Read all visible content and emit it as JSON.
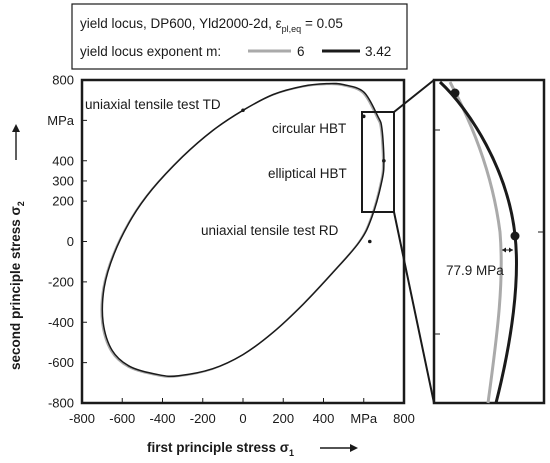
{
  "legend": {
    "line1_prefix": "yield locus, DP600, Yld2000-2d, ε",
    "line1_sub": "pl,eq",
    "line1_suffix": " = 0.05",
    "line2_prefix": "yield locus exponent m:",
    "series_labels": [
      "6",
      "3.42"
    ],
    "series_colors": [
      "#aaaaaa",
      "#1a1a1a"
    ]
  },
  "axes": {
    "x_label_main": "first principle stress σ",
    "x_label_sub": "1",
    "y_label_main": "second principle stress σ",
    "y_label_sub": "2",
    "x_unit": "MPa",
    "y_unit": "MPa"
  },
  "annotations": {
    "uniaxial_td": "uniaxial tensile test TD",
    "circular_hbt": "circular HBT",
    "elliptical_hbt": "elliptical HBT",
    "uniaxial_rd": "uniaxial tensile test RD",
    "gap_label": "77.9 MPa"
  },
  "chart_data": {
    "type": "line",
    "xlabel": "first principle stress σ1",
    "ylabel": "second principle stress σ2",
    "xlim": [
      -800,
      800
    ],
    "ylim": [
      -800,
      800
    ],
    "x_ticks": [
      -800,
      -600,
      -400,
      -200,
      0,
      200,
      400,
      600,
      800
    ],
    "x_tick_labels": [
      "-800",
      "-600",
      "-400",
      "-200",
      "0",
      "200",
      "400",
      "MPa",
      "800"
    ],
    "y_ticks": [
      -800,
      -600,
      -400,
      -200,
      0,
      200,
      300,
      400,
      600,
      800
    ],
    "y_tick_labels": [
      "-800",
      "-600",
      "-400",
      "-200",
      "0",
      "200",
      "300",
      "400",
      "MPa",
      "800"
    ],
    "series": [
      {
        "name": "6",
        "color": "#aaaaaa"
      },
      {
        "name": "3.42",
        "color": "#1a1a1a"
      }
    ],
    "locus_points": [
      [
        600,
        740
      ],
      [
        500,
        777
      ],
      [
        420,
        782
      ],
      [
        300,
        770
      ],
      [
        150,
        728
      ],
      [
        0,
        650
      ],
      [
        -150,
        550
      ],
      [
        -300,
        420
      ],
      [
        -450,
        260
      ],
      [
        -550,
        120
      ],
      [
        -640,
        -60
      ],
      [
        -690,
        -230
      ],
      [
        -695,
        -400
      ],
      [
        -650,
        -540
      ],
      [
        -560,
        -620
      ],
      [
        -420,
        -660
      ],
      [
        -320,
        -665
      ],
      [
        -150,
        -630
      ],
      [
        0,
        -560
      ],
      [
        150,
        -450
      ],
      [
        300,
        -310
      ],
      [
        450,
        -150
      ],
      [
        580,
        0
      ],
      [
        640,
        120
      ],
      [
        690,
        300
      ],
      [
        700,
        400
      ],
      [
        690,
        560
      ],
      [
        670,
        620
      ]
    ],
    "test_points": [
      {
        "name": "uniaxial tensile test TD",
        "x": 0,
        "y": 650
      },
      {
        "name": "circular HBT",
        "x": 600,
        "y": 620
      },
      {
        "name": "elliptical HBT",
        "x": 700,
        "y": 400
      },
      {
        "name": "uniaxial tensile test RD",
        "x": 630,
        "y": 0
      }
    ],
    "zoom_window": {
      "x": [
        590,
        760
      ],
      "y": [
        260,
        650
      ]
    },
    "zoom_gap_mpa": 77.9
  }
}
